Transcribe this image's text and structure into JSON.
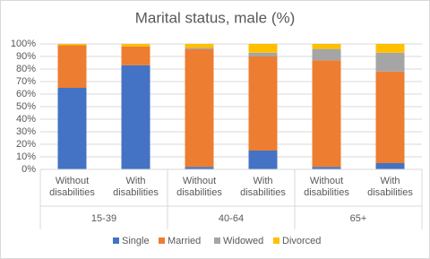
{
  "chart_data": {
    "type": "stacked_bar",
    "title": "Marital status, male (%)",
    "categories": [
      "Without disabilities",
      "With disabilities",
      "Without disabilities",
      "With disabilities",
      "Without disabilities",
      "With disabilities"
    ],
    "groups": [
      "15-39",
      "40-64",
      "65+"
    ],
    "series": [
      {
        "name": "Single",
        "color": "#4472c4",
        "values": [
          65,
          83,
          2,
          15,
          2,
          5
        ]
      },
      {
        "name": "Married",
        "color": "#ed7d31",
        "values": [
          34,
          15,
          94,
          75,
          85,
          73
        ]
      },
      {
        "name": "Widowed",
        "color": "#a5a5a5",
        "values": [
          0,
          0,
          1,
          3,
          9,
          15
        ]
      },
      {
        "name": "Divorced",
        "color": "#ffc000",
        "values": [
          1,
          2,
          3,
          7,
          4,
          7
        ]
      }
    ],
    "ylim": [
      0,
      100
    ],
    "yticks": [
      {
        "value": 0,
        "label": "0%"
      },
      {
        "value": 10,
        "label": "10%"
      },
      {
        "value": 20,
        "label": "20%"
      },
      {
        "value": 30,
        "label": "30%"
      },
      {
        "value": 40,
        "label": "40%"
      },
      {
        "value": 50,
        "label": "50%"
      },
      {
        "value": 60,
        "label": "60%"
      },
      {
        "value": 70,
        "label": "70%"
      },
      {
        "value": 80,
        "label": "80%"
      },
      {
        "value": 90,
        "label": "90%"
      },
      {
        "value": 100,
        "label": "100%"
      }
    ],
    "grid": true,
    "legend": "bottom"
  }
}
